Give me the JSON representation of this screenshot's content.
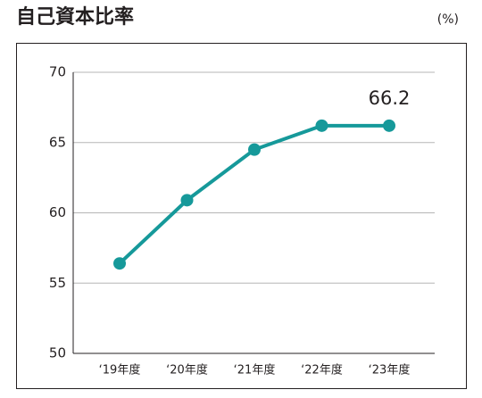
{
  "chart_data": {
    "type": "line",
    "title": "自己資本比率",
    "unit": "(%)",
    "categories": [
      "‘19年度",
      "‘20年度",
      "‘21年度",
      "‘22年度",
      "‘23年度"
    ],
    "values": [
      56.4,
      60.9,
      64.5,
      66.2,
      66.2
    ],
    "labeled_points": [
      4
    ],
    "color": "#16999a",
    "ylim": [
      50,
      70
    ],
    "yticks": [
      50,
      55,
      60,
      65,
      70
    ],
    "grid": true
  }
}
